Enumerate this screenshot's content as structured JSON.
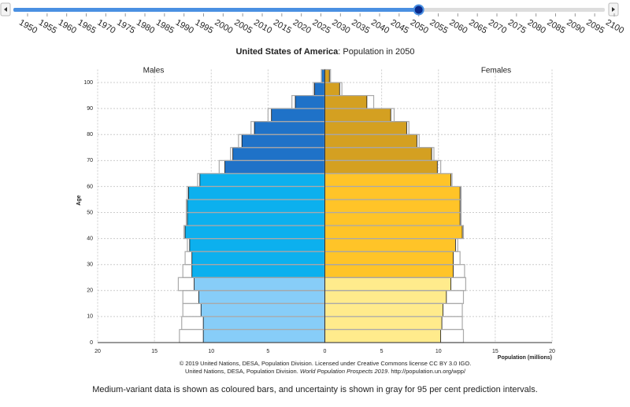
{
  "slider": {
    "years": [
      1950,
      1955,
      1960,
      1965,
      1970,
      1975,
      1980,
      1985,
      1990,
      1995,
      2000,
      2005,
      2010,
      2015,
      2020,
      2025,
      2030,
      2035,
      2040,
      2045,
      2050,
      2055,
      2060,
      2065,
      2070,
      2075,
      2080,
      2085,
      2090,
      2095,
      2100
    ],
    "value": 2050
  },
  "chart_data": {
    "type": "pyramid",
    "title_country": "United States of America",
    "title_rest": ": Population in 2050",
    "ylabel": "Age",
    "xlabel": "Population (millions)",
    "xlim": [
      -20,
      20
    ],
    "xticks": [
      {
        "value": -20,
        "label": "20"
      },
      {
        "value": -15,
        "label": "15"
      },
      {
        "value": -10,
        "label": "10"
      },
      {
        "value": -5,
        "label": "5"
      },
      0,
      5,
      10,
      15,
      20
    ],
    "ylim": [
      0,
      105
    ],
    "yticks": [
      0,
      10,
      20,
      30,
      40,
      50,
      60,
      70,
      80,
      90,
      100
    ],
    "age_step": 5,
    "grid": true,
    "series": [
      {
        "name": "Males",
        "direction": -1,
        "values": [
          10.7,
          10.7,
          10.9,
          11.1,
          11.5,
          11.7,
          11.7,
          11.9,
          12.3,
          12.1,
          12.1,
          12.0,
          11.0,
          8.8,
          8.1,
          7.3,
          6.2,
          4.7,
          2.6,
          0.9,
          0.3
        ],
        "upper": [
          12.8,
          12.6,
          12.5,
          12.5,
          12.9,
          12.5,
          12.3,
          12.1,
          12.4,
          12.2,
          12.2,
          12.1,
          11.2,
          9.3,
          8.3,
          7.6,
          6.5,
          5.0,
          2.9,
          1.0,
          0.3
        ],
        "colors": [
          "#87cdf8",
          "#87cdf8",
          "#87cdf8",
          "#87cdf8",
          "#87cdf8",
          "#0cb0ee",
          "#0cb0ee",
          "#0cb0ee",
          "#0cb0ee",
          "#0cb0ee",
          "#0cb0ee",
          "#0cb0ee",
          "#0cb0ee",
          "#1f72c8",
          "#1f72c8",
          "#1f72c8",
          "#1f72c8",
          "#1f72c8",
          "#1f72c8",
          "#1f72c8",
          "#1f72c8"
        ]
      },
      {
        "name": "Females",
        "direction": 1,
        "values": [
          10.2,
          10.3,
          10.4,
          10.7,
          11.1,
          11.3,
          11.3,
          11.5,
          12.1,
          11.9,
          11.9,
          11.9,
          11.1,
          9.9,
          9.4,
          8.1,
          7.2,
          5.8,
          3.7,
          1.3,
          0.4
        ],
        "upper": [
          12.2,
          12.1,
          12.1,
          12.2,
          12.4,
          12.3,
          11.9,
          11.7,
          12.2,
          12.0,
          12.0,
          12.0,
          11.2,
          10.2,
          9.6,
          8.3,
          7.4,
          6.1,
          4.3,
          1.5,
          0.5
        ],
        "colors": [
          "#ffeb8c",
          "#ffeb8c",
          "#ffeb8c",
          "#ffeb8c",
          "#ffeb8c",
          "#ffc428",
          "#ffc428",
          "#ffc428",
          "#ffc428",
          "#ffc428",
          "#ffc428",
          "#ffc428",
          "#ffc428",
          "#d4a021",
          "#d4a021",
          "#d4a021",
          "#d4a021",
          "#d4a021",
          "#d4a021",
          "#d4a021",
          "#d4a021"
        ]
      }
    ],
    "credit_line1": "© 2019 United Nations, DESA, Population Division. Licensed under Creative Commons license CC BY 3.0 IGO.",
    "credit_line2a": "United Nations, DESA, Population Division. ",
    "credit_line2b": "World Population Prospects 2019",
    "credit_line2c": ". http://population.un.org/wpp/"
  },
  "caption": "Medium-variant data is shown as coloured bars, and uncertainty is shown in gray for 95 per cent prediction intervals."
}
